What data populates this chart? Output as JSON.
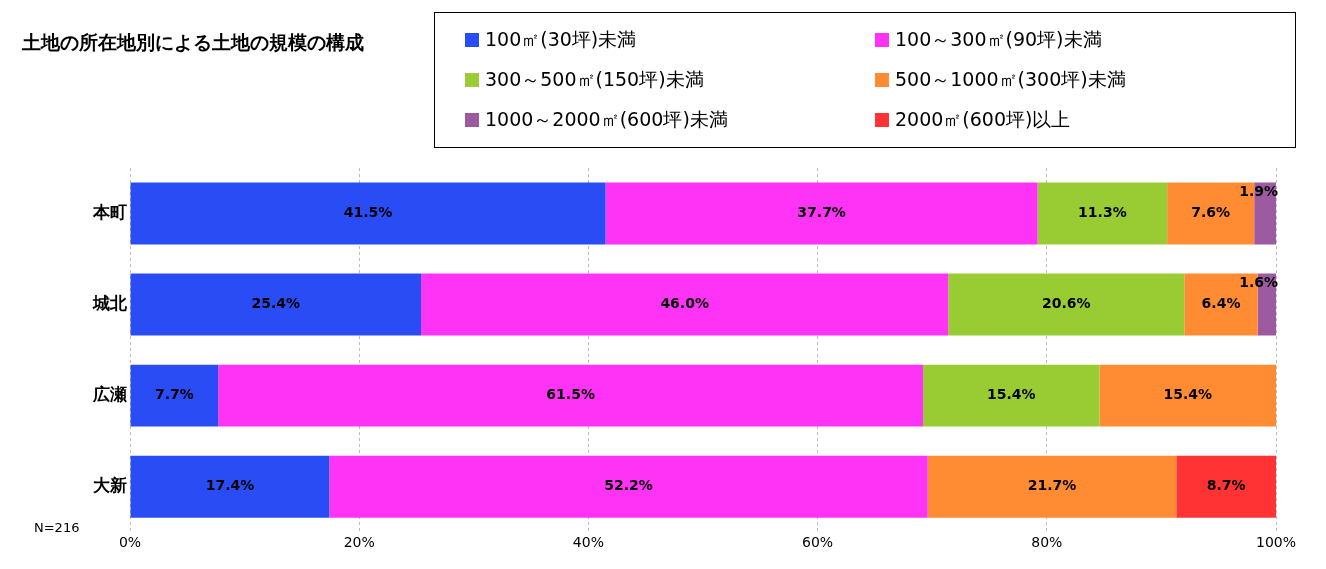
{
  "chart_data": {
    "type": "bar",
    "orientation": "horizontal",
    "stacked": true,
    "title": "土地の所在地別による土地の規模の構成",
    "categories": [
      "本町",
      "城北",
      "広瀬",
      "大新"
    ],
    "series": [
      {
        "name": "100㎡(30坪)未満",
        "color": "#2a4cf5",
        "values": [
          41.5,
          25.4,
          7.7,
          17.4
        ],
        "value_labels": [
          "41.5%",
          "25.4%",
          "7.7%",
          "17.4%"
        ]
      },
      {
        "name": "100～300㎡(90坪)未満",
        "color": "#ff33f5",
        "values": [
          37.7,
          46.0,
          61.5,
          52.2
        ],
        "value_labels": [
          "37.7%",
          "46.0%",
          "61.5%",
          "52.2%"
        ]
      },
      {
        "name": "300～500㎡(150坪)未満",
        "color": "#99cc33",
        "values": [
          11.3,
          20.6,
          15.4,
          null
        ],
        "value_labels": [
          "11.3%",
          "20.6%",
          "15.4%",
          null
        ]
      },
      {
        "name": "500～1000㎡(300坪)未満",
        "color": "#ff8c33",
        "values": [
          7.6,
          6.4,
          15.4,
          21.7
        ],
        "value_labels": [
          "7.6%",
          "6.4%",
          "15.4%",
          "21.7%"
        ]
      },
      {
        "name": "1000～2000㎡(600坪)未満",
        "color": "#9c5aa0",
        "values": [
          1.9,
          1.6,
          null,
          null
        ],
        "value_labels": [
          "1.9%",
          "1.6%",
          null,
          null
        ]
      },
      {
        "name": "2000㎡(600坪)以上",
        "color": "#ff3333",
        "values": [
          null,
          null,
          null,
          8.7
        ],
        "value_labels": [
          null,
          null,
          null,
          "8.7%"
        ]
      }
    ],
    "xlim": [
      0,
      100
    ],
    "xticks": [
      {
        "value": 0,
        "label": "0%"
      },
      {
        "value": 20,
        "label": "20%"
      },
      {
        "value": 40,
        "label": "40%"
      },
      {
        "value": 60,
        "label": "60%"
      },
      {
        "value": 80,
        "label": "80%"
      },
      {
        "value": 100,
        "label": "100%"
      }
    ],
    "grid": "x",
    "legend": "top right",
    "annotations": [
      "N=216"
    ]
  }
}
